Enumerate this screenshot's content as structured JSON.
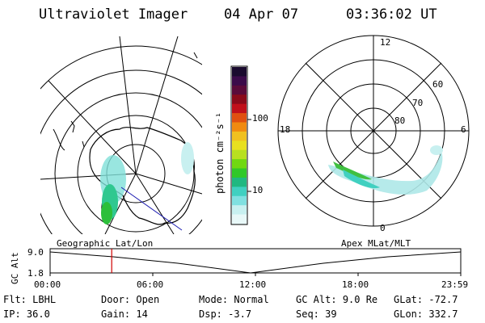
{
  "header": {
    "instrument": "Ultraviolet Imager",
    "date": "04 Apr 07",
    "time": "03:36:02 UT"
  },
  "colorbar": {
    "unit_label": "photon cm⁻²s⁻¹",
    "ticks": [
      "100",
      "10"
    ],
    "colors": [
      "#1a0a2e",
      "#3b0a4a",
      "#5a0a3a",
      "#8a0a1a",
      "#c0101a",
      "#e05010",
      "#f08a10",
      "#f0c020",
      "#e8e020",
      "#b8e020",
      "#70d810",
      "#30c828",
      "#20b880",
      "#40d0c0",
      "#80e0e0",
      "#c8f0f0",
      "#e8f8f8"
    ]
  },
  "polar_plot": {
    "labels": {
      "top": "12",
      "bottom": "0",
      "left": "18",
      "right": "6",
      "lat60": "60",
      "lat70": "70",
      "lat80": "80"
    }
  },
  "map_labels": {
    "geographic": "Geographic Lat/Lon",
    "apex": "Apex MLat/MLT"
  },
  "altitude_plot": {
    "y_axis_label": "GC Alt",
    "y_ticks": [
      "9.0",
      "1.8"
    ],
    "x_ticks": [
      "00:00",
      "06:00",
      "12:00",
      "18:00",
      "23:59"
    ],
    "current_time_fraction": 0.15
  },
  "status": {
    "row1": [
      {
        "key": "Flt:",
        "value": "LBHL"
      },
      {
        "key": "Door:",
        "value": "Open"
      },
      {
        "key": "Mode:",
        "value": "Normal"
      },
      {
        "key": "GC Alt:",
        "value": "9.0 Re"
      },
      {
        "key": "GLat:",
        "value": "-72.7"
      }
    ],
    "row2": [
      {
        "key": "IP:",
        "value": "36.0"
      },
      {
        "key": "Gain:",
        "value": "14"
      },
      {
        "key": "Dsp:",
        "value": "-3.7"
      },
      {
        "key": "Seq:",
        "value": "39"
      },
      {
        "key": "GLon:",
        "value": "332.7"
      }
    ]
  }
}
